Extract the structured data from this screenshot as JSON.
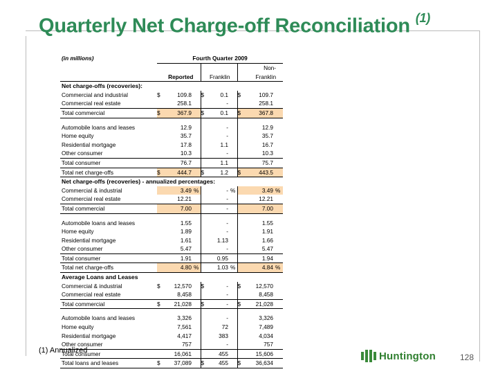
{
  "title": "Quarterly Net Charge-off Reconciliation",
  "title_footnote_mark": "(1)",
  "units_label": "(in millions)",
  "period_label": "Fourth Quarter 2009",
  "columns": {
    "reported": "Reported",
    "franklin": "Franklin",
    "nonfranklin_line1": "Non-",
    "nonfranklin_line2": "Franklin"
  },
  "sections": [
    {
      "heading": "Net charge-offs (recoveries):",
      "rows": [
        {
          "label": "Commercial and industrial",
          "rs": "$",
          "r": "109.8",
          "rp": "",
          "fs": "$",
          "f": "0.1",
          "fp": "",
          "ns": "$",
          "n": "109.7",
          "np": "",
          "total": false,
          "hl": false
        },
        {
          "label": "Commercial real estate",
          "rs": "",
          "r": "258.1",
          "rp": "",
          "fs": "",
          "f": "-",
          "fp": "",
          "ns": "",
          "n": "258.1",
          "np": "",
          "total": false,
          "hl": false
        },
        {
          "label": "Total commercial",
          "rs": "$",
          "r": "367.9",
          "rp": "",
          "fs": "$",
          "f": "0.1",
          "fp": "",
          "ns": "$",
          "n": "367.8",
          "np": "",
          "total": true,
          "hl": true
        },
        {
          "spacer": true
        },
        {
          "label": "Automobile loans and leases",
          "rs": "",
          "r": "12.9",
          "rp": "",
          "fs": "",
          "f": "-",
          "fp": "",
          "ns": "",
          "n": "12.9",
          "np": "",
          "total": false,
          "hl": false
        },
        {
          "label": "Home equity",
          "rs": "",
          "r": "35.7",
          "rp": "",
          "fs": "",
          "f": "-",
          "fp": "",
          "ns": "",
          "n": "35.7",
          "np": "",
          "total": false,
          "hl": false
        },
        {
          "label": "Residential mortgage",
          "rs": "",
          "r": "17.8",
          "rp": "",
          "fs": "",
          "f": "1.1",
          "fp": "",
          "ns": "",
          "n": "16.7",
          "np": "",
          "total": false,
          "hl": false
        },
        {
          "label": "Other consumer",
          "rs": "",
          "r": "10.3",
          "rp": "",
          "fs": "",
          "f": "-",
          "fp": "",
          "ns": "",
          "n": "10.3",
          "np": "",
          "total": false,
          "hl": false
        },
        {
          "label": "Total consumer",
          "rs": "",
          "r": "76.7",
          "rp": "",
          "fs": "",
          "f": "1.1",
          "fp": "",
          "ns": "",
          "n": "75.7",
          "np": "",
          "total": true,
          "hl": false
        },
        {
          "label": "Total net charge-offs",
          "rs": "$",
          "r": "444.7",
          "rp": "",
          "fs": "$",
          "f": "1.2",
          "fp": "",
          "ns": "$",
          "n": "443.5",
          "np": "",
          "total": true,
          "hl": true
        }
      ]
    },
    {
      "heading": "Net charge-offs (recoveries) - annualized percentages:",
      "rows": [
        {
          "label": "Commercial & industrial",
          "rs": "",
          "r": "3.49",
          "rp": "%",
          "fs": "",
          "f": "-",
          "fp": "%",
          "ns": "",
          "n": "3.49",
          "np": "%",
          "total": false,
          "hl": true
        },
        {
          "label": "Commercial real estate",
          "rs": "",
          "r": "12.21",
          "rp": "",
          "fs": "",
          "f": "-",
          "fp": "",
          "ns": "",
          "n": "12.21",
          "np": "",
          "total": false,
          "hl": false
        },
        {
          "label": "Total commercial",
          "rs": "",
          "r": "7.00",
          "rp": "",
          "fs": "",
          "f": "-",
          "fp": "",
          "ns": "",
          "n": "7.00",
          "np": "",
          "total": true,
          "hl": true
        },
        {
          "spacer": true
        },
        {
          "label": "Automobile loans and leases",
          "rs": "",
          "r": "1.55",
          "rp": "",
          "fs": "",
          "f": "-",
          "fp": "",
          "ns": "",
          "n": "1.55",
          "np": "",
          "total": false,
          "hl": false
        },
        {
          "label": "Home equity",
          "rs": "",
          "r": "1.89",
          "rp": "",
          "fs": "",
          "f": "-",
          "fp": "",
          "ns": "",
          "n": "1.91",
          "np": "",
          "total": false,
          "hl": false
        },
        {
          "label": "Residential mortgage",
          "rs": "",
          "r": "1.61",
          "rp": "",
          "fs": "",
          "f": "1.13",
          "fp": "",
          "ns": "",
          "n": "1.66",
          "np": "",
          "total": false,
          "hl": false
        },
        {
          "label": "Other consumer",
          "rs": "",
          "r": "5.47",
          "rp": "",
          "fs": "",
          "f": "-",
          "fp": "",
          "ns": "",
          "n": "5.47",
          "np": "",
          "total": false,
          "hl": false
        },
        {
          "label": "Total consumer",
          "rs": "",
          "r": "1.91",
          "rp": "",
          "fs": "",
          "f": "0.95",
          "fp": "",
          "ns": "",
          "n": "1.94",
          "np": "",
          "total": true,
          "hl": false
        },
        {
          "label": "Total net charge-offs",
          "rs": "",
          "r": "4.80",
          "rp": "%",
          "fs": "",
          "f": "1.03",
          "fp": "%",
          "ns": "",
          "n": "4.84",
          "np": "%",
          "total": true,
          "hl": true
        }
      ]
    },
    {
      "heading": "Average Loans and Leases",
      "rows": [
        {
          "label": "Commercial & industrial",
          "rs": "$",
          "r": "12,570",
          "rp": "",
          "fs": "$",
          "f": "-",
          "fp": "",
          "ns": "$",
          "n": "12,570",
          "np": "",
          "total": false,
          "hl": false
        },
        {
          "label": "Commercial real estate",
          "rs": "",
          "r": "8,458",
          "rp": "",
          "fs": "",
          "f": "-",
          "fp": "",
          "ns": "",
          "n": "8,458",
          "np": "",
          "total": false,
          "hl": false
        },
        {
          "label": "Total commercial",
          "rs": "$",
          "r": "21,028",
          "rp": "",
          "fs": "$",
          "f": "-",
          "fp": "",
          "ns": "$",
          "n": "21,028",
          "np": "",
          "total": true,
          "hl": false
        },
        {
          "spacer": true
        },
        {
          "label": "Automobile loans and leases",
          "rs": "",
          "r": "3,326",
          "rp": "",
          "fs": "",
          "f": "-",
          "fp": "",
          "ns": "",
          "n": "3,326",
          "np": "",
          "total": false,
          "hl": false
        },
        {
          "label": "Home equity",
          "rs": "",
          "r": "7,561",
          "rp": "",
          "fs": "",
          "f": "72",
          "fp": "",
          "ns": "",
          "n": "7,489",
          "np": "",
          "total": false,
          "hl": false
        },
        {
          "label": "Residential mortgage",
          "rs": "",
          "r": "4,417",
          "rp": "",
          "fs": "",
          "f": "383",
          "fp": "",
          "ns": "",
          "n": "4,034",
          "np": "",
          "total": false,
          "hl": false
        },
        {
          "label": "Other consumer",
          "rs": "",
          "r": "757",
          "rp": "",
          "fs": "",
          "f": "-",
          "fp": "",
          "ns": "",
          "n": "757",
          "np": "",
          "total": false,
          "hl": false
        },
        {
          "label": "Total consumer",
          "rs": "",
          "r": "16,061",
          "rp": "",
          "fs": "",
          "f": "455",
          "fp": "",
          "ns": "",
          "n": "15,606",
          "np": "",
          "total": true,
          "hl": false
        },
        {
          "label": "Total loans and leases",
          "rs": "$",
          "r": "37,089",
          "rp": "",
          "fs": "$",
          "f": "455",
          "fp": "",
          "ns": "$",
          "n": "36,634",
          "np": "",
          "total": true,
          "hl": false
        }
      ]
    }
  ],
  "footnote": "(1)  Annualized",
  "logo_text": "Huntington",
  "page_number": "128"
}
